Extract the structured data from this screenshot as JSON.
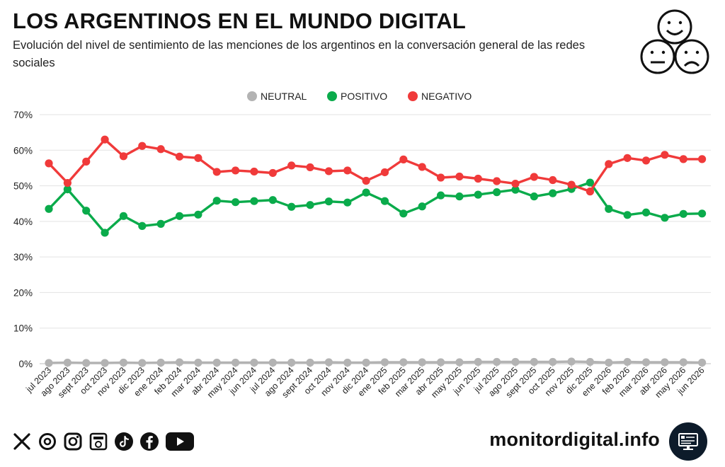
{
  "header": {
    "title": "LOS ARGENTINOS EN EL MUNDO DIGITAL",
    "subtitle": "Evolución del nivel de sentimiento de las menciones de los argentinos en la conversación general de las redes sociales"
  },
  "icons": {
    "faces": [
      "happy-face-icon",
      "neutral-face-icon",
      "sad-face-icon"
    ],
    "social": [
      "x-icon",
      "threads-icon",
      "instagram-icon",
      "news-icon",
      "tiktok-icon",
      "facebook-icon",
      "youtube-icon"
    ],
    "logo": "monitor-icon"
  },
  "footer": {
    "brand": "monitordigital.info"
  },
  "colors": {
    "neutral": "#b3b3b3",
    "positivo": "#0aab4b",
    "negativo": "#f03a3a",
    "grid": "#e3e3e3"
  },
  "chart_data": {
    "type": "line",
    "legend_position": "top",
    "grid": true,
    "ylim": [
      0,
      70
    ],
    "yticks": [
      0,
      10,
      20,
      30,
      40,
      50,
      60,
      70
    ],
    "ytick_labels": [
      "0%",
      "10%",
      "20%",
      "30%",
      "40%",
      "50%",
      "60%",
      "70%"
    ],
    "categories": [
      "jul 2023",
      "ago 2023",
      "sept 2023",
      "oct 2023",
      "nov 2023",
      "dic 2023",
      "ene 2024",
      "feb 2024",
      "mar 2024",
      "abr 2024",
      "may 2024",
      "jun 2024",
      "jul 2024",
      "ago 2024",
      "sept 2024",
      "oct 2024",
      "nov 2024",
      "dic 2024",
      "ene 2025",
      "feb 2025",
      "mar 2025",
      "abr 2025",
      "may 2025",
      "jun 2025",
      "jul 2025",
      "ago 2025",
      "sept 2025",
      "oct 2025",
      "nov 2025",
      "dic 2025",
      "ene 2026",
      "feb 2026",
      "mar 2026",
      "abr 2026",
      "may 2026",
      "jun 2026"
    ],
    "series": [
      {
        "name": "NEUTRAL",
        "color": "#b3b3b3",
        "values": [
          0.2,
          0.3,
          0.2,
          0.2,
          0.3,
          0.2,
          0.3,
          0.4,
          0.3,
          0.3,
          0.3,
          0.3,
          0.3,
          0.3,
          0.3,
          0.4,
          0.3,
          0.3,
          0.4,
          0.4,
          0.4,
          0.4,
          0.4,
          0.5,
          0.5,
          0.5,
          0.5,
          0.5,
          0.6,
          0.5,
          0.3,
          0.5,
          0.4,
          0.4,
          0.4,
          0.3
        ]
      },
      {
        "name": "POSITIVO",
        "color": "#0aab4b",
        "values": [
          43.5,
          49.0,
          43.0,
          36.8,
          41.5,
          38.7,
          39.3,
          41.5,
          41.9,
          45.8,
          45.4,
          45.7,
          46.0,
          44.1,
          44.6,
          45.6,
          45.3,
          48.1,
          45.7,
          42.2,
          44.2,
          47.3,
          47.0,
          47.5,
          48.2,
          48.9,
          47.0,
          47.9,
          49.1,
          50.9,
          43.5,
          41.8,
          42.5,
          41.0,
          42.1,
          42.2
        ]
      },
      {
        "name": "NEGATIVO",
        "color": "#f03a3a",
        "values": [
          56.3,
          50.8,
          56.8,
          63.0,
          58.3,
          61.2,
          60.3,
          58.2,
          57.8,
          53.9,
          54.3,
          54.0,
          53.6,
          55.7,
          55.2,
          54.1,
          54.3,
          51.4,
          53.8,
          57.4,
          55.3,
          52.3,
          52.6,
          52.0,
          51.3,
          50.6,
          52.5,
          51.6,
          50.3,
          48.4,
          56.1,
          57.8,
          57.1,
          58.7,
          57.5,
          57.5
        ]
      }
    ]
  }
}
